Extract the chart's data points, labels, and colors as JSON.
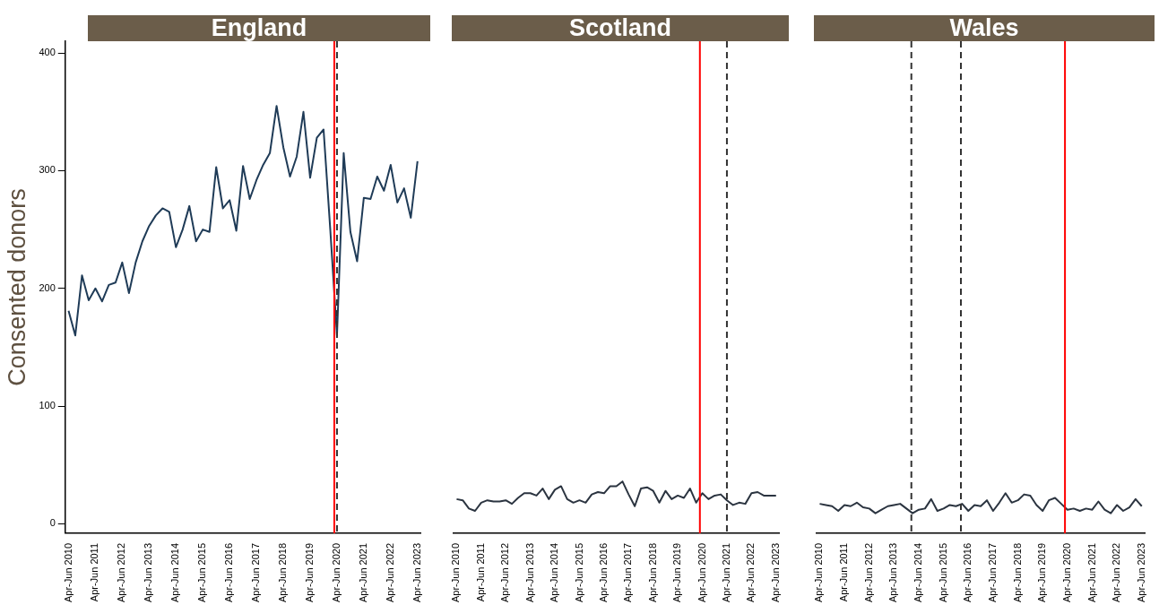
{
  "chart_data": [
    {
      "type": "line",
      "title": "England",
      "ylabel": "Consented donors",
      "tick_labels": "xy",
      "legend": false,
      "grid": false,
      "marker": "none",
      "line_style": "solid",
      "ylim": [
        -8,
        410
      ],
      "yticks": [
        0,
        100,
        200,
        300,
        400
      ],
      "categories": [
        "Apr-Jun 2010",
        null,
        null,
        null,
        "Apr-Jun 2011",
        null,
        null,
        null,
        "Apr-Jun 2012",
        null,
        null,
        null,
        "Apr-Jun 2013",
        null,
        null,
        null,
        "Apr-Jun 2014",
        null,
        null,
        null,
        "Apr-Jun 2015",
        null,
        null,
        null,
        "Apr-Jun 2016",
        null,
        null,
        null,
        "Apr-Jun 2017",
        null,
        null,
        null,
        "Apr-Jun 2018",
        null,
        null,
        null,
        "Apr-Jun 2019",
        null,
        null,
        null,
        "Apr-Jun 2020",
        null,
        null,
        null,
        "Apr-Jun 2021",
        null,
        null,
        null,
        "Apr-Jun 2022",
        null,
        null,
        null,
        "Apr-Jun 2023"
      ],
      "series": [
        {
          "color": "#1f3b57",
          "values": [
            181,
            160,
            211,
            190,
            200,
            189,
            203,
            205,
            222,
            196,
            222,
            240,
            253,
            262,
            268,
            265,
            235,
            250,
            270,
            240,
            250,
            248,
            303,
            268,
            275,
            249,
            304,
            276,
            292,
            305,
            315,
            355,
            320,
            295,
            312,
            350,
            294,
            328,
            335,
            250,
            160,
            315,
            248,
            223,
            277,
            276,
            295,
            283,
            305,
            273,
            285,
            260,
            308
          ]
        }
      ],
      "ref_lines": [
        {
          "axis": "x",
          "value": "Apr-Jun 2020",
          "color": "#333333",
          "line_style": "dashed"
        }
      ]
    },
    {
      "type": "line",
      "title": "Scotland",
      "tick_labels": "x",
      "legend": false,
      "grid": false,
      "marker": "none",
      "line_style": "solid",
      "ylim": [
        -8,
        410
      ],
      "yticks": [
        0,
        100,
        200,
        300,
        400
      ],
      "categories": [
        "Apr-Jun 2010",
        null,
        null,
        null,
        "Apr-Jun 2011",
        null,
        null,
        null,
        "Apr-Jun 2012",
        null,
        null,
        null,
        "Apr-Jun 2013",
        null,
        null,
        null,
        "Apr-Jun 2014",
        null,
        null,
        null,
        "Apr-Jun 2015",
        null,
        null,
        null,
        "Apr-Jun 2016",
        null,
        null,
        null,
        "Apr-Jun 2017",
        null,
        null,
        null,
        "Apr-Jun 2018",
        null,
        null,
        null,
        "Apr-Jun 2019",
        null,
        null,
        null,
        "Apr-Jun 2020",
        null,
        null,
        null,
        "Apr-Jun 2021",
        null,
        null,
        null,
        "Apr-Jun 2022",
        null,
        null,
        null,
        "Apr-Jun 2023"
      ],
      "series": [
        {
          "color": "#2b3440",
          "values": [
            21,
            20,
            13,
            11,
            18,
            20,
            19,
            19,
            20,
            17,
            22,
            26,
            26,
            24,
            30,
            21,
            29,
            32,
            21,
            18,
            20,
            18,
            25,
            27,
            26,
            32,
            32,
            36,
            25,
            15,
            30,
            31,
            28,
            18,
            28,
            21,
            24,
            22,
            30,
            18,
            26,
            21,
            24,
            25,
            20,
            16,
            18,
            17,
            26,
            27,
            24,
            24,
            24
          ]
        }
      ],
      "ref_lines": [
        {
          "axis": "x",
          "value": "Apr-Jun 2021",
          "color": "#333333",
          "line_style": "dashed"
        }
      ]
    },
    {
      "type": "line",
      "title": "Wales",
      "tick_labels": "x",
      "legend": false,
      "grid": false,
      "marker": "none",
      "line_style": "solid",
      "ylim": [
        -8,
        410
      ],
      "yticks": [
        0,
        100,
        200,
        300,
        400
      ],
      "categories": [
        "Apr-Jun 2010",
        null,
        null,
        null,
        "Apr-Jun 2011",
        null,
        null,
        null,
        "Apr-Jun 2012",
        null,
        null,
        null,
        "Apr-Jun 2013",
        null,
        null,
        null,
        "Apr-Jun 2014",
        null,
        null,
        null,
        "Apr-Jun 2015",
        null,
        null,
        null,
        "Apr-Jun 2016",
        null,
        null,
        null,
        "Apr-Jun 2017",
        null,
        null,
        null,
        "Apr-Jun 2018",
        null,
        null,
        null,
        "Apr-Jun 2019",
        null,
        null,
        null,
        "Apr-Jun 2020",
        null,
        null,
        null,
        "Apr-Jun 2021",
        null,
        null,
        null,
        "Apr-Jun 2022",
        null,
        null,
        null,
        "Apr-Jun 2023"
      ],
      "series": [
        {
          "color": "#2b3440",
          "values": [
            17,
            16,
            15,
            11,
            16,
            15,
            18,
            14,
            13,
            9,
            12,
            15,
            16,
            17,
            13,
            9,
            12,
            13,
            21,
            11,
            13,
            16,
            15,
            17,
            11,
            16,
            15,
            20,
            11,
            18,
            26,
            18,
            20,
            25,
            24,
            16,
            11,
            20,
            22,
            17,
            12,
            13,
            11,
            13,
            12,
            19,
            12,
            9,
            16,
            11,
            14,
            21,
            15
          ]
        }
      ]
    }
  ]
}
